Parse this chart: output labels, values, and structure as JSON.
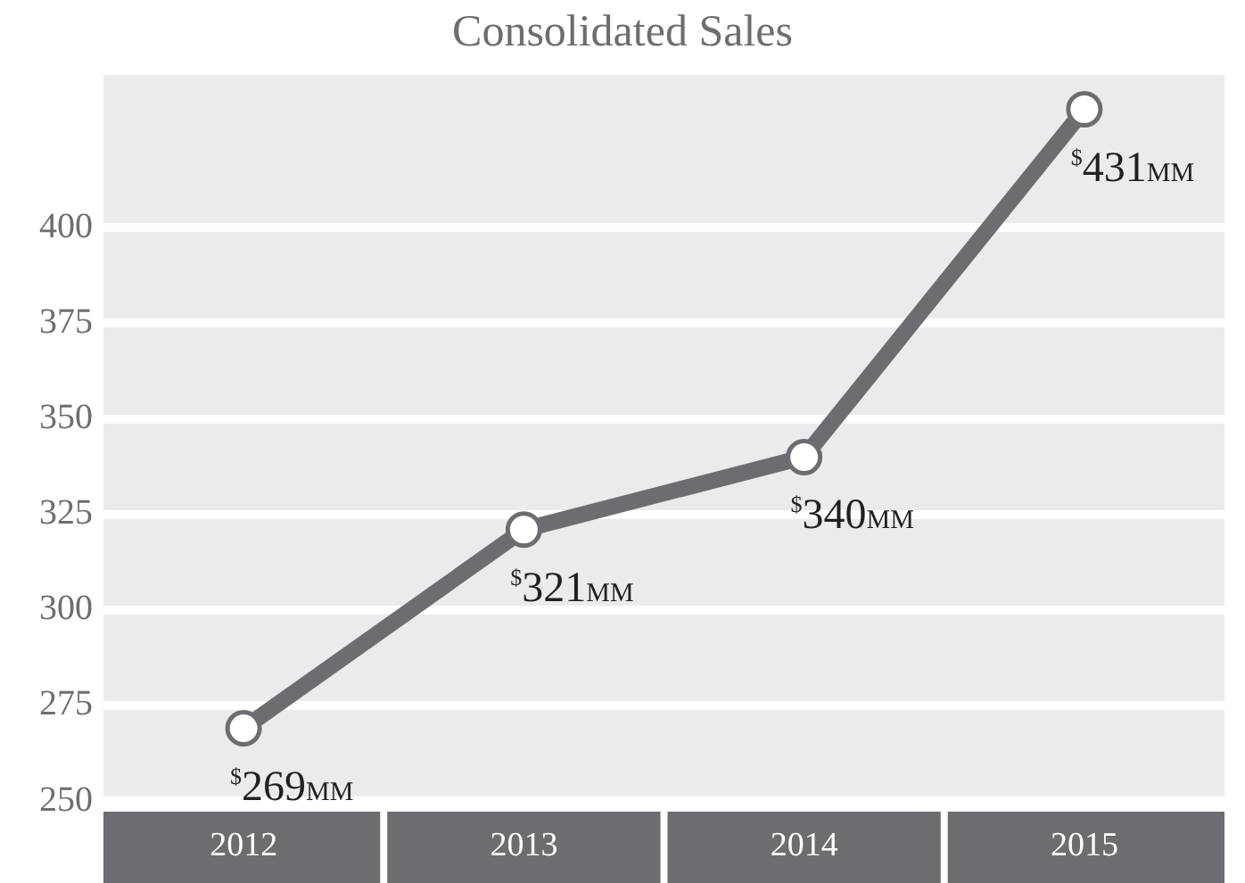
{
  "chart_data": {
    "type": "line",
    "title": "Consolidated Sales",
    "categories": [
      "2012",
      "2013",
      "2014",
      "2015"
    ],
    "series": [
      {
        "color": "#6d6d71",
        "values": [
          269,
          321,
          340,
          431
        ],
        "value_labels": [
          "$269MM",
          "$321MM",
          "$340MM",
          "$431MM"
        ]
      }
    ],
    "ylim": [
      250,
      440
    ],
    "yticks": [
      250,
      275,
      300,
      325,
      350,
      375,
      400
    ],
    "grid": "y",
    "legend": false,
    "marker": "circle"
  }
}
